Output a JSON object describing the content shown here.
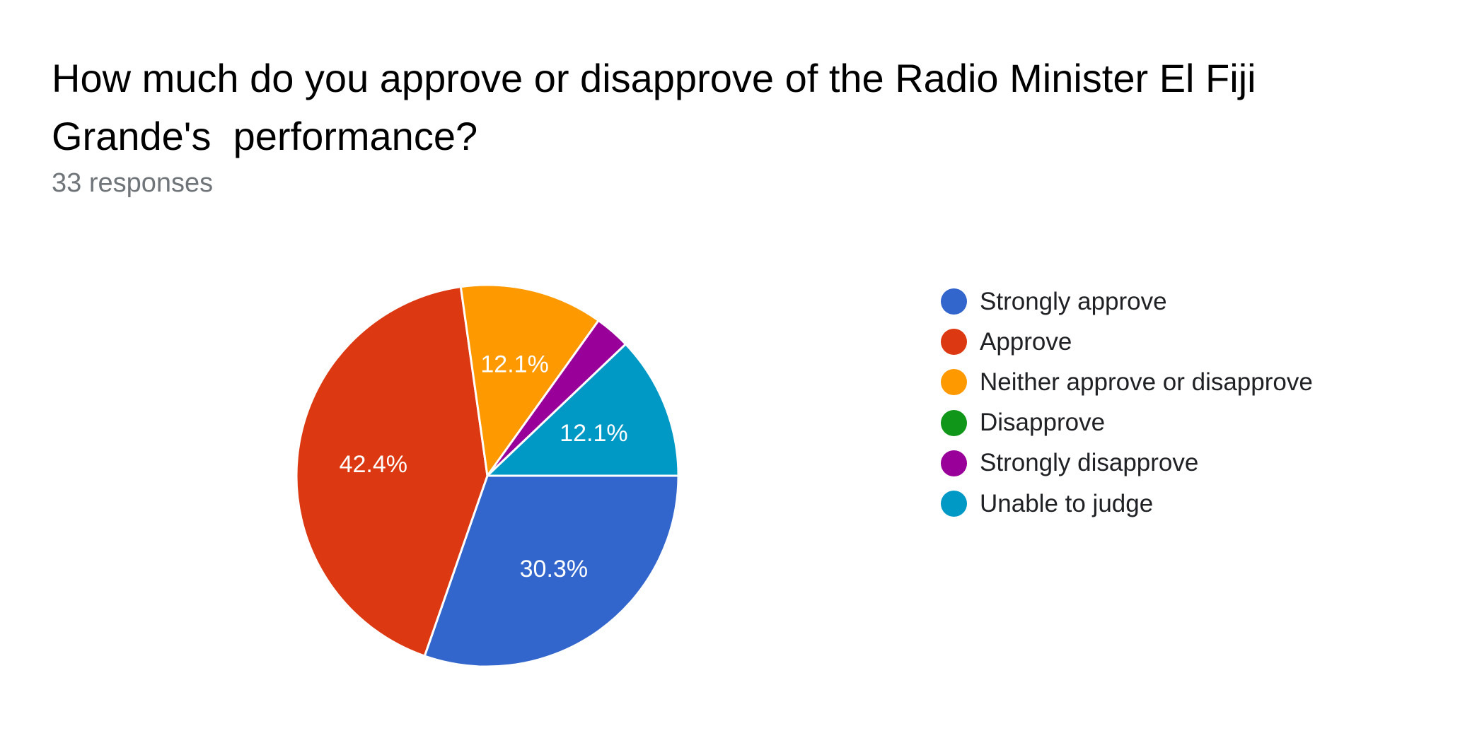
{
  "header": {
    "title": "How much do you approve or disapprove of the Radio Minister El Fiji Grande's  performance?",
    "subtitle": "33 responses"
  },
  "chart_data": {
    "type": "pie",
    "title": "How much do you approve or disapprove of the Radio Minister El Fiji Grande's  performance?",
    "total_responses": 33,
    "categories": [
      "Strongly approve",
      "Approve",
      "Neither approve or disapprove",
      "Disapprove",
      "Strongly disapprove",
      "Unable to judge"
    ],
    "values": [
      30.3,
      42.4,
      12.1,
      0,
      3.0,
      12.1
    ],
    "counts": [
      10,
      14,
      4,
      0,
      1,
      4
    ],
    "slice_labels": [
      "30.3%",
      "42.4%",
      "12.1%",
      "",
      "",
      "12.1%"
    ],
    "colors": [
      "#3366cc",
      "#dc3912",
      "#ff9900",
      "#109618",
      "#990099",
      "#0099c6"
    ],
    "legend_position": "right"
  },
  "legend": {
    "items": [
      {
        "label": "Strongly approve",
        "color": "#3366cc"
      },
      {
        "label": "Approve",
        "color": "#dc3912"
      },
      {
        "label": "Neither approve or disapprove",
        "color": "#ff9900"
      },
      {
        "label": "Disapprove",
        "color": "#109618"
      },
      {
        "label": "Strongly disapprove",
        "color": "#990099"
      },
      {
        "label": "Unable to judge",
        "color": "#0099c6"
      }
    ]
  }
}
